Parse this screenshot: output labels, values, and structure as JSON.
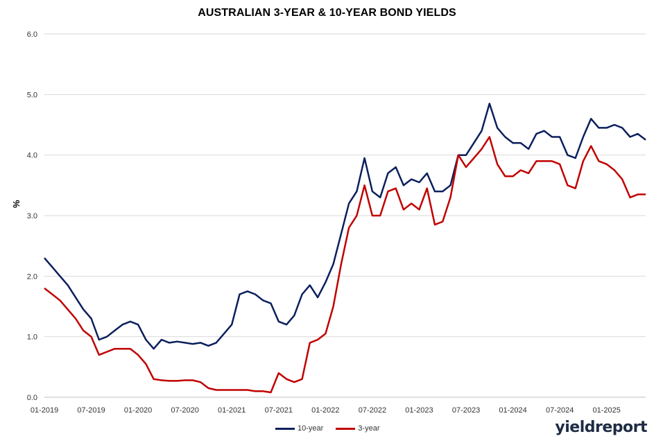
{
  "chart_data": {
    "type": "line",
    "title": "AUSTRALIAN 3-YEAR & 10-YEAR BOND YIELDS",
    "ylabel": "%",
    "xlabel": "",
    "ylim": [
      0.0,
      6.0
    ],
    "yticks": [
      "0.0",
      "1.0",
      "2.0",
      "3.0",
      "4.0",
      "5.0",
      "6.0"
    ],
    "xticks": [
      "01-2019",
      "07-2019",
      "01-2020",
      "07-2020",
      "01-2021",
      "07-2021",
      "01-2022",
      "07-2022",
      "01-2023",
      "07-2023",
      "01-2024",
      "07-2024",
      "01-2025"
    ],
    "grid": true,
    "legend_position": "bottom",
    "x": [
      "01-2019",
      "02-2019",
      "03-2019",
      "04-2019",
      "05-2019",
      "06-2019",
      "07-2019",
      "08-2019",
      "09-2019",
      "10-2019",
      "11-2019",
      "12-2019",
      "01-2020",
      "02-2020",
      "03-2020",
      "04-2020",
      "05-2020",
      "06-2020",
      "07-2020",
      "08-2020",
      "09-2020",
      "10-2020",
      "11-2020",
      "12-2020",
      "01-2021",
      "02-2021",
      "03-2021",
      "04-2021",
      "05-2021",
      "06-2021",
      "07-2021",
      "08-2021",
      "09-2021",
      "10-2021",
      "11-2021",
      "12-2021",
      "01-2022",
      "02-2022",
      "03-2022",
      "04-2022",
      "05-2022",
      "06-2022",
      "07-2022",
      "08-2022",
      "09-2022",
      "10-2022",
      "11-2022",
      "12-2022",
      "01-2023",
      "02-2023",
      "03-2023",
      "04-2023",
      "05-2023",
      "06-2023",
      "07-2023",
      "08-2023",
      "09-2023",
      "10-2023",
      "11-2023",
      "12-2023",
      "01-2024",
      "02-2024",
      "03-2024",
      "04-2024",
      "05-2024",
      "06-2024",
      "07-2024",
      "08-2024",
      "09-2024",
      "10-2024",
      "11-2024",
      "12-2024",
      "01-2025",
      "02-2025",
      "03-2025",
      "04-2025",
      "05-2025",
      "06-2025"
    ],
    "series": [
      {
        "name": "10-year",
        "color": "#0b1f5c",
        "values": [
          2.3,
          2.15,
          2.0,
          1.85,
          1.65,
          1.45,
          1.3,
          0.95,
          1.0,
          1.1,
          1.2,
          1.25,
          1.2,
          0.95,
          0.8,
          0.95,
          0.9,
          0.92,
          0.9,
          0.88,
          0.9,
          0.85,
          0.9,
          1.05,
          1.2,
          1.7,
          1.75,
          1.7,
          1.6,
          1.55,
          1.25,
          1.2,
          1.35,
          1.7,
          1.85,
          1.65,
          1.9,
          2.2,
          2.7,
          3.2,
          3.4,
          3.95,
          3.4,
          3.3,
          3.7,
          3.8,
          3.5,
          3.6,
          3.55,
          3.7,
          3.4,
          3.4,
          3.5,
          4.0,
          4.0,
          4.2,
          4.4,
          4.85,
          4.45,
          4.3,
          4.2,
          4.2,
          4.1,
          4.35,
          4.4,
          4.3,
          4.3,
          4.0,
          3.95,
          4.3,
          4.6,
          4.45,
          4.45,
          4.5,
          4.45,
          4.3,
          4.35,
          4.25
        ]
      },
      {
        "name": "3-year",
        "color": "#c00000",
        "values": [
          1.8,
          1.7,
          1.6,
          1.45,
          1.3,
          1.1,
          1.0,
          0.7,
          0.75,
          0.8,
          0.8,
          0.8,
          0.7,
          0.55,
          0.3,
          0.28,
          0.27,
          0.27,
          0.28,
          0.28,
          0.25,
          0.15,
          0.12,
          0.12,
          0.12,
          0.12,
          0.12,
          0.1,
          0.1,
          0.08,
          0.4,
          0.3,
          0.25,
          0.3,
          0.9,
          0.95,
          1.05,
          1.5,
          2.2,
          2.8,
          3.0,
          3.5,
          3.0,
          3.0,
          3.4,
          3.45,
          3.1,
          3.2,
          3.1,
          3.45,
          2.85,
          2.9,
          3.3,
          4.0,
          3.8,
          3.95,
          4.1,
          4.3,
          3.85,
          3.65,
          3.65,
          3.75,
          3.7,
          3.9,
          3.9,
          3.9,
          3.85,
          3.5,
          3.45,
          3.9,
          4.15,
          3.9,
          3.85,
          3.75,
          3.6,
          3.3,
          3.35,
          3.35
        ]
      }
    ]
  },
  "logo": {
    "text_main": "yieldreport"
  }
}
